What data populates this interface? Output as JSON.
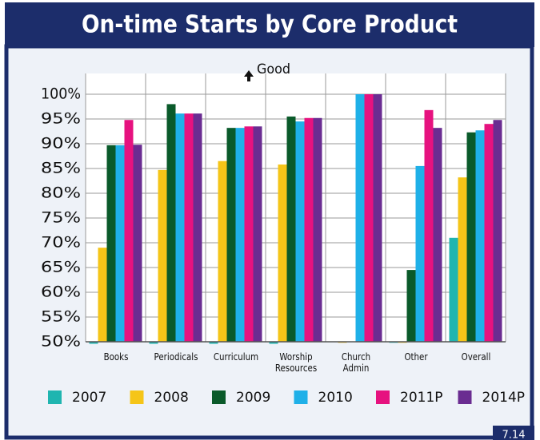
{
  "chart_data": {
    "type": "bar",
    "title": "On-time Starts by Core Product",
    "annotation": "Good",
    "page_number": "7.14",
    "categories": [
      "Books",
      "Periodicals",
      "Curriculum",
      "Worship Resources",
      "Church Admin",
      "Other",
      "Overall"
    ],
    "series": [
      {
        "name": "2007",
        "color": "#1fb5b0",
        "values": [
          49.6,
          49.6,
          49.6,
          49.6,
          null,
          49.8,
          71
        ]
      },
      {
        "name": "2008",
        "color": "#f5c518",
        "values": [
          69,
          84.7,
          86.5,
          85.8,
          49.8,
          49.8,
          83.2
        ]
      },
      {
        "name": "2009",
        "color": "#0a5a2a",
        "values": [
          89.7,
          98,
          93.2,
          95.5,
          null,
          64.5,
          92.3
        ]
      },
      {
        "name": "2010",
        "color": "#1fb0e8",
        "values": [
          89.7,
          96.1,
          93.2,
          94.5,
          100,
          85.5,
          92.7
        ]
      },
      {
        "name": "2011P",
        "color": "#e6127f",
        "values": [
          94.8,
          96.1,
          93.5,
          95.2,
          100,
          96.8,
          94
        ]
      },
      {
        "name": "2014P",
        "color": "#6a2c91",
        "values": [
          89.8,
          96.1,
          93.5,
          95.2,
          100,
          93.2,
          94.8
        ]
      }
    ],
    "ylim": [
      50,
      100
    ],
    "yticks": [
      {
        "value": 50,
        "label": "50%"
      },
      {
        "value": 55,
        "label": "55%"
      },
      {
        "value": 60,
        "label": "60%"
      },
      {
        "value": 65,
        "label": "65%"
      },
      {
        "value": 70,
        "label": "70%"
      },
      {
        "value": 75,
        "label": "75%"
      },
      {
        "value": 80,
        "label": "80%"
      },
      {
        "value": 85,
        "label": "85%"
      },
      {
        "value": 90,
        "label": "90%"
      },
      {
        "value": 95,
        "label": "95%"
      },
      {
        "value": 100,
        "label": "100%"
      }
    ],
    "grid": true
  }
}
